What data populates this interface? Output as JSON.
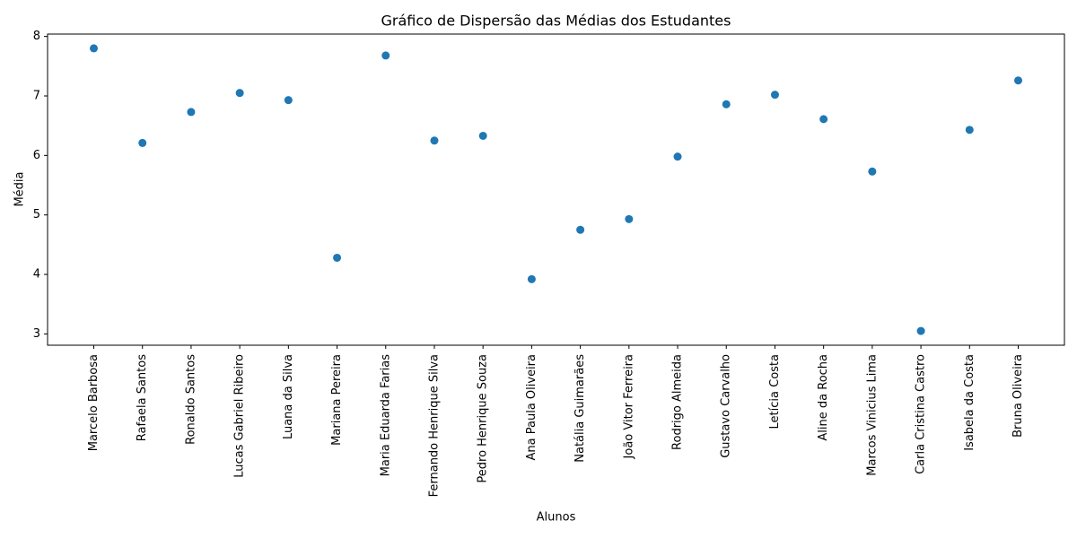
{
  "chart_data": {
    "type": "scatter",
    "title": "Gráfico de Dispersão das Médias dos Estudantes",
    "x_label": "Alunos",
    "y_label": "Média",
    "categories": [
      "Marcelo Barbosa",
      "Rafaela Santos",
      "Ronaldo Santos",
      "Lucas Gabriel Ribeiro",
      "Luana da Silva",
      "Mariana Pereira",
      "Maria Eduarda Farias",
      "Fernando Henrique Silva",
      "Pedro Henrique Souza",
      "Ana Paula Oliveira",
      "Natália Guimarães",
      "João Vitor Ferreira",
      "Rodrigo Almeida",
      "Gustavo Carvalho",
      "Letícia Costa",
      "Aline da Rocha",
      "Marcos Vinicius Lima",
      "Carla Cristina Castro",
      "Isabela da Costa",
      "Bruna Oliveira"
    ],
    "values": [
      7.8,
      6.21,
      6.73,
      7.05,
      6.93,
      4.28,
      7.68,
      6.25,
      6.33,
      3.92,
      4.75,
      4.93,
      5.98,
      6.86,
      7.02,
      6.61,
      5.73,
      3.05,
      6.43,
      7.26
    ],
    "color": "#1f77b4",
    "ylim": [
      2.81,
      8.04
    ],
    "yticks": [
      3,
      4,
      5,
      6,
      7,
      8
    ],
    "grid": false
  }
}
